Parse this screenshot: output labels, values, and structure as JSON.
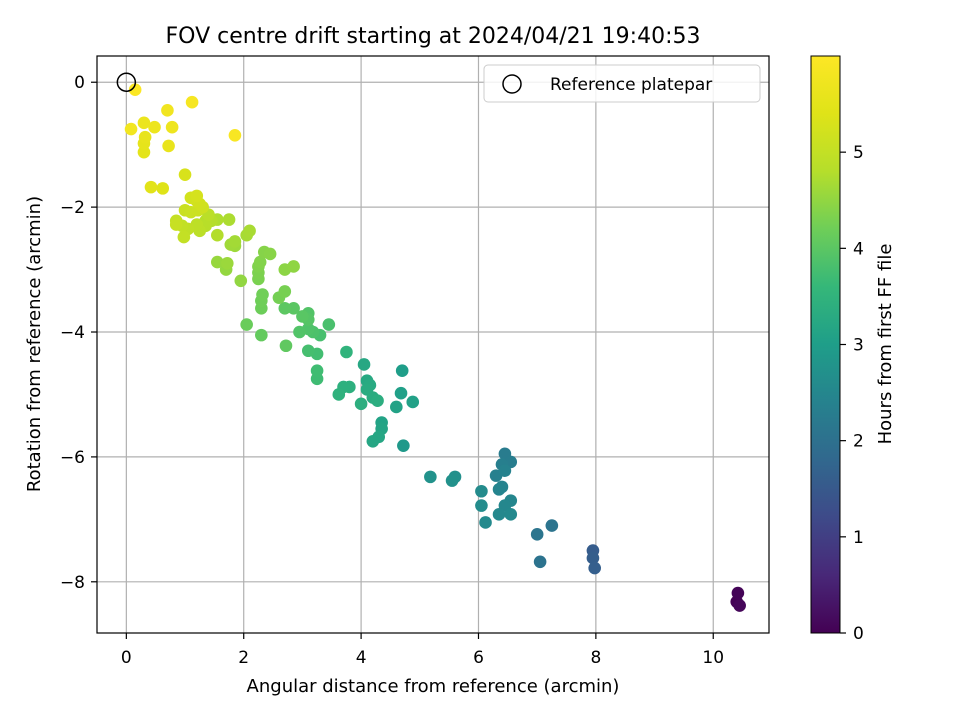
{
  "chart_data": {
    "type": "scatter",
    "title": "FOV centre drift starting at 2024/04/21 19:40:53",
    "xlabel": "Angular distance from reference (arcmin)",
    "ylabel": "Rotation from reference (arcmin)",
    "xlim": [
      -0.5,
      10.95
    ],
    "ylim": [
      -8.82,
      0.42
    ],
    "xticks": [
      0,
      2,
      4,
      6,
      8,
      10
    ],
    "yticks": [
      0,
      -2,
      -4,
      -6,
      -8
    ],
    "xtick_labels": [
      "0",
      "2",
      "4",
      "6",
      "8",
      "10"
    ],
    "ytick_labels": [
      "0",
      "−2",
      "−4",
      "−6",
      "−8"
    ],
    "grid": true,
    "legend": {
      "placement": "top-right",
      "entries": [
        "Reference platepar"
      ]
    },
    "colorbar": {
      "label": "Hours from first FF file",
      "colormap": "viridis",
      "range": [
        0,
        6
      ],
      "ticks": [
        0,
        1,
        2,
        3,
        4,
        5
      ],
      "tick_labels": [
        "0",
        "1",
        "2",
        "3",
        "4",
        "5"
      ]
    },
    "reference_point": {
      "x": 0,
      "y": 0
    },
    "points": [
      {
        "x": 10.4,
        "y": -8.32,
        "h": 0.02
      },
      {
        "x": 10.42,
        "y": -8.18,
        "h": 0.05
      },
      {
        "x": 10.45,
        "y": -8.38,
        "h": 0.08
      },
      {
        "x": 7.95,
        "y": -7.5,
        "h": 1.55
      },
      {
        "x": 7.95,
        "y": -7.62,
        "h": 1.6
      },
      {
        "x": 7.98,
        "y": -7.78,
        "h": 1.62
      },
      {
        "x": 7.05,
        "y": -7.68,
        "h": 2.05
      },
      {
        "x": 7.0,
        "y": -7.24,
        "h": 2.1
      },
      {
        "x": 7.25,
        "y": -7.1,
        "h": 2.08
      },
      {
        "x": 6.45,
        "y": -5.95,
        "h": 2.25
      },
      {
        "x": 6.55,
        "y": -6.08,
        "h": 2.28
      },
      {
        "x": 6.4,
        "y": -6.12,
        "h": 2.32
      },
      {
        "x": 6.3,
        "y": -6.3,
        "h": 2.35
      },
      {
        "x": 6.45,
        "y": -6.22,
        "h": 2.4
      },
      {
        "x": 6.4,
        "y": -6.48,
        "h": 2.42
      },
      {
        "x": 6.35,
        "y": -6.52,
        "h": 2.45
      },
      {
        "x": 6.55,
        "y": -6.7,
        "h": 2.48
      },
      {
        "x": 6.45,
        "y": -6.78,
        "h": 2.5
      },
      {
        "x": 6.35,
        "y": -6.92,
        "h": 2.52
      },
      {
        "x": 6.55,
        "y": -6.92,
        "h": 2.55
      },
      {
        "x": 6.12,
        "y": -7.05,
        "h": 2.58
      },
      {
        "x": 6.05,
        "y": -6.55,
        "h": 2.6
      },
      {
        "x": 6.05,
        "y": -6.78,
        "h": 2.62
      },
      {
        "x": 5.6,
        "y": -6.32,
        "h": 2.7
      },
      {
        "x": 5.55,
        "y": -6.38,
        "h": 2.72
      },
      {
        "x": 5.18,
        "y": -6.32,
        "h": 2.75
      },
      {
        "x": 4.72,
        "y": -5.82,
        "h": 2.9
      },
      {
        "x": 4.7,
        "y": -4.62,
        "h": 3.0
      },
      {
        "x": 4.68,
        "y": -4.98,
        "h": 3.05
      },
      {
        "x": 4.88,
        "y": -5.12,
        "h": 3.08
      },
      {
        "x": 4.6,
        "y": -5.2,
        "h": 3.1
      },
      {
        "x": 4.35,
        "y": -5.45,
        "h": 3.12
      },
      {
        "x": 4.35,
        "y": -5.55,
        "h": 3.15
      },
      {
        "x": 4.3,
        "y": -5.68,
        "h": 3.18
      },
      {
        "x": 4.2,
        "y": -5.75,
        "h": 3.2
      },
      {
        "x": 4.05,
        "y": -4.52,
        "h": 3.22
      },
      {
        "x": 4.1,
        "y": -4.78,
        "h": 3.25
      },
      {
        "x": 4.15,
        "y": -4.85,
        "h": 3.28
      },
      {
        "x": 4.1,
        "y": -4.92,
        "h": 3.3
      },
      {
        "x": 4.2,
        "y": -5.05,
        "h": 3.32
      },
      {
        "x": 4.28,
        "y": -5.1,
        "h": 3.35
      },
      {
        "x": 4.0,
        "y": -5.15,
        "h": 3.38
      },
      {
        "x": 3.8,
        "y": -4.88,
        "h": 3.4
      },
      {
        "x": 3.7,
        "y": -4.88,
        "h": 3.42
      },
      {
        "x": 3.62,
        "y": -5.0,
        "h": 3.45
      },
      {
        "x": 3.75,
        "y": -4.32,
        "h": 3.5
      },
      {
        "x": 3.25,
        "y": -4.75,
        "h": 3.7
      },
      {
        "x": 3.25,
        "y": -4.62,
        "h": 3.72
      },
      {
        "x": 3.25,
        "y": -4.35,
        "h": 3.75
      },
      {
        "x": 3.1,
        "y": -4.3,
        "h": 3.78
      },
      {
        "x": 3.3,
        "y": -4.05,
        "h": 3.8
      },
      {
        "x": 3.45,
        "y": -3.88,
        "h": 3.82
      },
      {
        "x": 3.18,
        "y": -4.0,
        "h": 3.85
      },
      {
        "x": 3.1,
        "y": -3.95,
        "h": 3.88
      },
      {
        "x": 2.95,
        "y": -4.0,
        "h": 3.9
      },
      {
        "x": 3.1,
        "y": -3.7,
        "h": 3.92
      },
      {
        "x": 3.1,
        "y": -3.8,
        "h": 3.95
      },
      {
        "x": 3.0,
        "y": -3.75,
        "h": 3.98
      },
      {
        "x": 2.85,
        "y": -3.62,
        "h": 4.0
      },
      {
        "x": 2.7,
        "y": -3.62,
        "h": 4.02
      },
      {
        "x": 2.72,
        "y": -4.22,
        "h": 4.05
      },
      {
        "x": 2.3,
        "y": -4.05,
        "h": 4.1
      },
      {
        "x": 2.05,
        "y": -3.88,
        "h": 4.15
      },
      {
        "x": 2.3,
        "y": -3.62,
        "h": 4.18
      },
      {
        "x": 2.3,
        "y": -3.5,
        "h": 4.2
      },
      {
        "x": 2.32,
        "y": -3.4,
        "h": 4.22
      },
      {
        "x": 2.6,
        "y": -3.45,
        "h": 4.25
      },
      {
        "x": 2.7,
        "y": -3.35,
        "h": 4.28
      },
      {
        "x": 2.25,
        "y": -3.15,
        "h": 4.3
      },
      {
        "x": 2.25,
        "y": -3.05,
        "h": 4.32
      },
      {
        "x": 2.25,
        "y": -2.95,
        "h": 4.35
      },
      {
        "x": 2.28,
        "y": -2.88,
        "h": 4.38
      },
      {
        "x": 2.35,
        "y": -2.72,
        "h": 4.4
      },
      {
        "x": 2.45,
        "y": -2.75,
        "h": 4.42
      },
      {
        "x": 2.7,
        "y": -3.0,
        "h": 4.45
      },
      {
        "x": 2.85,
        "y": -2.95,
        "h": 4.48
      },
      {
        "x": 1.95,
        "y": -3.18,
        "h": 4.5
      },
      {
        "x": 1.7,
        "y": -3.0,
        "h": 4.52
      },
      {
        "x": 1.55,
        "y": -2.88,
        "h": 4.55
      },
      {
        "x": 1.72,
        "y": -2.9,
        "h": 4.58
      },
      {
        "x": 1.85,
        "y": -2.62,
        "h": 4.6
      },
      {
        "x": 1.78,
        "y": -2.6,
        "h": 4.62
      },
      {
        "x": 1.85,
        "y": -2.55,
        "h": 4.65
      },
      {
        "x": 2.05,
        "y": -2.45,
        "h": 4.68
      },
      {
        "x": 2.1,
        "y": -2.38,
        "h": 4.7
      },
      {
        "x": 1.75,
        "y": -2.2,
        "h": 4.72
      },
      {
        "x": 1.55,
        "y": -2.2,
        "h": 4.75
      },
      {
        "x": 1.55,
        "y": -2.45,
        "h": 4.78
      },
      {
        "x": 1.45,
        "y": -2.22,
        "h": 4.8
      },
      {
        "x": 1.35,
        "y": -2.22,
        "h": 4.82
      },
      {
        "x": 1.35,
        "y": -2.3,
        "h": 4.85
      },
      {
        "x": 1.4,
        "y": -2.12,
        "h": 4.88
      },
      {
        "x": 1.25,
        "y": -2.38,
        "h": 4.9
      },
      {
        "x": 1.2,
        "y": -2.28,
        "h": 4.92
      },
      {
        "x": 1.05,
        "y": -2.35,
        "h": 4.95
      },
      {
        "x": 0.95,
        "y": -2.3,
        "h": 4.98
      },
      {
        "x": 0.98,
        "y": -2.48,
        "h": 5.0
      },
      {
        "x": 0.85,
        "y": -2.22,
        "h": 5.02
      },
      {
        "x": 0.85,
        "y": -2.28,
        "h": 5.05
      },
      {
        "x": 1.0,
        "y": -2.05,
        "h": 5.08
      },
      {
        "x": 1.1,
        "y": -2.08,
        "h": 5.1
      },
      {
        "x": 1.22,
        "y": -2.05,
        "h": 5.12
      },
      {
        "x": 1.3,
        "y": -2.0,
        "h": 5.15
      },
      {
        "x": 1.25,
        "y": -1.95,
        "h": 5.18
      },
      {
        "x": 1.2,
        "y": -1.9,
        "h": 5.2
      },
      {
        "x": 1.1,
        "y": -1.85,
        "h": 5.22
      },
      {
        "x": 1.2,
        "y": -1.82,
        "h": 5.25
      },
      {
        "x": 1.0,
        "y": -1.48,
        "h": 5.3
      },
      {
        "x": 0.62,
        "y": -1.7,
        "h": 5.4
      },
      {
        "x": 0.42,
        "y": -1.68,
        "h": 5.45
      },
      {
        "x": 0.3,
        "y": -1.12,
        "h": 5.5
      },
      {
        "x": 0.3,
        "y": -0.98,
        "h": 5.55
      },
      {
        "x": 0.32,
        "y": -0.88,
        "h": 5.58
      },
      {
        "x": 0.72,
        "y": -1.02,
        "h": 5.6
      },
      {
        "x": 0.3,
        "y": -0.65,
        "h": 5.65
      },
      {
        "x": 0.48,
        "y": -0.72,
        "h": 5.68
      },
      {
        "x": 0.78,
        "y": -0.72,
        "h": 5.7
      },
      {
        "x": 0.7,
        "y": -0.45,
        "h": 5.75
      },
      {
        "x": 0.08,
        "y": -0.75,
        "h": 5.78
      },
      {
        "x": 1.12,
        "y": -0.32,
        "h": 5.85
      },
      {
        "x": 1.85,
        "y": -0.85,
        "h": 5.9
      },
      {
        "x": 0.15,
        "y": -0.12,
        "h": 5.95
      }
    ]
  }
}
